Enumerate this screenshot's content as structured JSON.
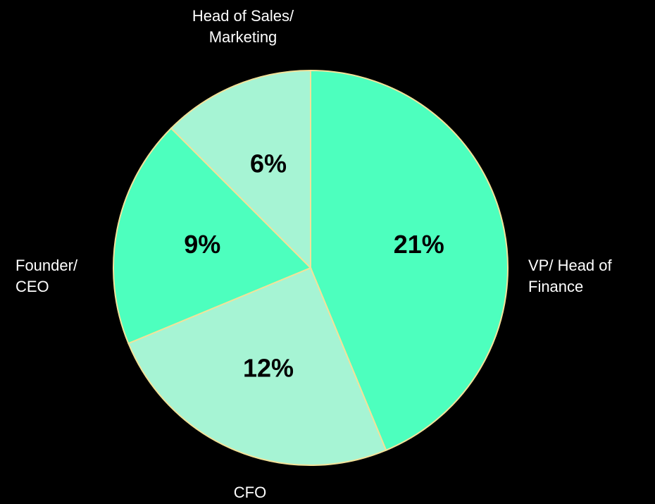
{
  "chart_data": {
    "type": "pie",
    "categories": [
      "VP/ Head of Finance",
      "CFO",
      "Founder/ CEO",
      "Head of Sales/ Marketing"
    ],
    "values": [
      21,
      12,
      9,
      6
    ],
    "value_labels": [
      "21%",
      "12%",
      "9%",
      "6%"
    ],
    "colors": [
      "#4dffbe",
      "#a6f4d4",
      "#4dffbe",
      "#a6f4d4"
    ],
    "edge_color": "#f2e29a"
  }
}
